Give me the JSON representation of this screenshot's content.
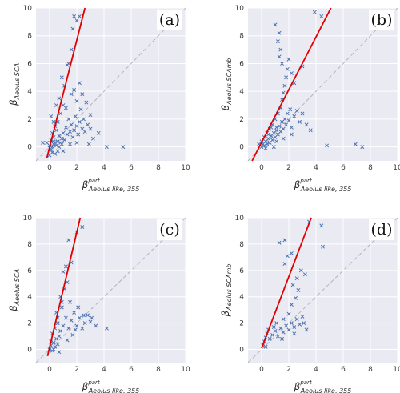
{
  "chart_data": [
    {
      "type": "scatter",
      "panel_label": "(a)",
      "ylabel": "β",
      "ylabel_sub": "Aeolus SCA",
      "xlabel": "β",
      "xlabel_sup": "part",
      "xlabel_sub": "Aeolus like, 355",
      "xlim": [
        -1,
        10
      ],
      "ylim": [
        -1,
        10
      ],
      "xticks": [
        0,
        2,
        4,
        6,
        8,
        10
      ],
      "yticks": [
        0,
        2,
        4,
        6,
        8,
        10
      ],
      "grid": true,
      "marker_color": "#4c72b0",
      "one_to_one_line": true,
      "fit_line": {
        "color": "#e00000",
        "x": [
          -0.2,
          2.6
        ],
        "y": [
          -0.8,
          10
        ]
      },
      "points": [
        [
          0.1,
          -0.2
        ],
        [
          0.2,
          0.0
        ],
        [
          0.3,
          0.2
        ],
        [
          0.1,
          0.5
        ],
        [
          0.4,
          0.3
        ],
        [
          0.5,
          0.1
        ],
        [
          0.6,
          0.4
        ],
        [
          0.2,
          -0.4
        ],
        [
          0.0,
          0.1
        ],
        [
          -0.2,
          0.3
        ],
        [
          0.3,
          0.7
        ],
        [
          0.7,
          0.8
        ],
        [
          0.8,
          0.3
        ],
        [
          0.9,
          0.6
        ],
        [
          1.0,
          1.0
        ],
        [
          1.1,
          0.5
        ],
        [
          0.5,
          1.2
        ],
        [
          0.4,
          1.5
        ],
        [
          0.6,
          1.8
        ],
        [
          0.2,
          1.0
        ],
        [
          1.2,
          1.4
        ],
        [
          1.3,
          0.9
        ],
        [
          1.4,
          2.0
        ],
        [
          1.5,
          1.1
        ],
        [
          1.6,
          1.6
        ],
        [
          1.7,
          0.7
        ],
        [
          1.8,
          1.2
        ],
        [
          1.9,
          2.2
        ],
        [
          2.0,
          1.5
        ],
        [
          2.1,
          0.9
        ],
        [
          2.2,
          1.8
        ],
        [
          2.3,
          2.7
        ],
        [
          2.4,
          1.3
        ],
        [
          2.5,
          2.0
        ],
        [
          2.6,
          1.1
        ],
        [
          2.8,
          1.6
        ],
        [
          3.0,
          1.3
        ],
        [
          0.8,
          2.4
        ],
        [
          1.0,
          3.0
        ],
        [
          1.2,
          2.8
        ],
        [
          0.7,
          3.5
        ],
        [
          1.6,
          3.8
        ],
        [
          1.8,
          4.1
        ],
        [
          2.0,
          3.3
        ],
        [
          2.2,
          4.6
        ],
        [
          1.1,
          4.4
        ],
        [
          0.9,
          5.0
        ],
        [
          1.3,
          5.9
        ],
        [
          1.4,
          6.0
        ],
        [
          1.6,
          7.0
        ],
        [
          1.8,
          9.4
        ],
        [
          2.0,
          9.1
        ],
        [
          2.2,
          9.4
        ],
        [
          1.7,
          8.5
        ],
        [
          0.3,
          1.8
        ],
        [
          0.1,
          2.2
        ],
        [
          0.0,
          -0.6
        ],
        [
          0.4,
          -0.5
        ],
        [
          -0.5,
          0.3
        ],
        [
          3.2,
          0.6
        ],
        [
          3.6,
          1.0
        ],
        [
          4.2,
          0.0
        ],
        [
          5.4,
          0.0
        ],
        [
          2.9,
          0.2
        ],
        [
          1.0,
          -0.3
        ],
        [
          0.6,
          -0.3
        ],
        [
          1.5,
          0.2
        ],
        [
          2.0,
          0.3
        ],
        [
          2.7,
          3.2
        ],
        [
          3.0,
          2.3
        ],
        [
          2.4,
          3.8
        ],
        [
          0.5,
          3.0
        ],
        [
          0.7,
          0.0
        ],
        [
          0.3,
          0.4
        ],
        [
          0.9,
          0.2
        ]
      ]
    },
    {
      "type": "scatter",
      "panel_label": "(b)",
      "ylabel": "β",
      "ylabel_sub": "Aeolus SCAmb",
      "xlabel": "β",
      "xlabel_sup": "part",
      "xlabel_sub": "Aeolus like, 355",
      "xlim": [
        -1,
        10
      ],
      "ylim": [
        -1,
        10
      ],
      "xticks": [
        0,
        2,
        4,
        6,
        8,
        10
      ],
      "yticks": [
        0,
        2,
        4,
        6,
        8,
        10
      ],
      "grid": true,
      "marker_color": "#4c72b0",
      "one_to_one_line": true,
      "fit_line": {
        "color": "#e00000",
        "x": [
          -0.7,
          5.1
        ],
        "y": [
          -1,
          10
        ]
      },
      "points": [
        [
          0.0,
          0.0
        ],
        [
          0.1,
          0.2
        ],
        [
          0.2,
          0.1
        ],
        [
          0.3,
          0.4
        ],
        [
          0.4,
          0.2
        ],
        [
          0.5,
          0.6
        ],
        [
          0.6,
          0.3
        ],
        [
          0.7,
          0.8
        ],
        [
          0.8,
          0.5
        ],
        [
          0.9,
          1.0
        ],
        [
          1.0,
          0.7
        ],
        [
          1.1,
          1.2
        ],
        [
          1.2,
          0.9
        ],
        [
          1.3,
          1.5
        ],
        [
          1.4,
          1.1
        ],
        [
          1.5,
          1.8
        ],
        [
          1.6,
          1.3
        ],
        [
          1.7,
          2.0
        ],
        [
          1.8,
          1.6
        ],
        [
          1.9,
          2.4
        ],
        [
          2.0,
          1.9
        ],
        [
          2.1,
          2.7
        ],
        [
          2.2,
          1.4
        ],
        [
          2.4,
          2.2
        ],
        [
          2.6,
          2.6
        ],
        [
          2.8,
          1.8
        ],
        [
          3.0,
          2.4
        ],
        [
          0.2,
          0.7
        ],
        [
          0.4,
          1.0
        ],
        [
          0.6,
          1.3
        ],
        [
          0.8,
          1.6
        ],
        [
          1.0,
          2.0
        ],
        [
          1.2,
          2.4
        ],
        [
          1.4,
          2.8
        ],
        [
          1.5,
          3.4
        ],
        [
          1.6,
          3.9
        ],
        [
          1.7,
          4.4
        ],
        [
          1.8,
          5.0
        ],
        [
          1.9,
          5.6
        ],
        [
          1.5,
          6.0
        ],
        [
          1.3,
          6.5
        ],
        [
          1.4,
          7.0
        ],
        [
          1.2,
          7.6
        ],
        [
          1.3,
          8.2
        ],
        [
          1.0,
          8.8
        ],
        [
          2.0,
          6.3
        ],
        [
          2.2,
          5.3
        ],
        [
          2.4,
          4.6
        ],
        [
          3.0,
          5.8
        ],
        [
          1.1,
          1.4
        ],
        [
          0.0,
          0.4
        ],
        [
          -0.2,
          0.2
        ],
        [
          0.3,
          -0.1
        ],
        [
          0.9,
          0.0
        ],
        [
          1.6,
          0.6
        ],
        [
          2.2,
          0.9
        ],
        [
          3.3,
          1.6
        ],
        [
          3.6,
          1.2
        ],
        [
          4.8,
          0.1
        ],
        [
          6.9,
          0.2
        ],
        [
          7.4,
          0.0
        ],
        [
          4.4,
          9.4
        ],
        [
          3.9,
          9.7
        ],
        [
          0.5,
          0.9
        ],
        [
          0.7,
          1.4
        ],
        [
          1.1,
          0.4
        ]
      ]
    },
    {
      "type": "scatter",
      "panel_label": "(c)",
      "ylabel": "β",
      "ylabel_sub": "Aeolus SCA",
      "xlabel": "β",
      "xlabel_sup": "part",
      "xlabel_sub": "Aeolus like, 355",
      "xlim": [
        -1,
        10
      ],
      "ylim": [
        -1,
        10
      ],
      "xticks": [
        0,
        2,
        4,
        6,
        8,
        10
      ],
      "yticks": [
        0,
        2,
        4,
        6,
        8,
        10
      ],
      "grid": true,
      "marker_color": "#4c72b0",
      "one_to_one_line": true,
      "fit_line": {
        "color": "#e00000",
        "x": [
          -0.15,
          2.25
        ],
        "y": [
          -0.5,
          10
        ]
      },
      "points": [
        [
          0.0,
          0.0
        ],
        [
          0.1,
          0.3
        ],
        [
          0.2,
          -0.1
        ],
        [
          0.3,
          0.5
        ],
        [
          0.4,
          0.2
        ],
        [
          0.5,
          0.8
        ],
        [
          0.6,
          0.4
        ],
        [
          0.7,
          1.0
        ],
        [
          0.2,
          1.2
        ],
        [
          0.4,
          1.6
        ],
        [
          0.6,
          2.0
        ],
        [
          0.8,
          1.4
        ],
        [
          1.0,
          1.8
        ],
        [
          1.2,
          2.4
        ],
        [
          1.4,
          1.6
        ],
        [
          1.6,
          2.2
        ],
        [
          1.8,
          2.8
        ],
        [
          2.0,
          1.8
        ],
        [
          2.2,
          2.4
        ],
        [
          2.4,
          1.6
        ],
        [
          2.6,
          2.0
        ],
        [
          3.0,
          2.1
        ],
        [
          3.4,
          1.8
        ],
        [
          4.2,
          1.6
        ],
        [
          0.5,
          2.8
        ],
        [
          0.9,
          3.2
        ],
        [
          0.8,
          4.0
        ],
        [
          1.1,
          4.6
        ],
        [
          1.3,
          5.1
        ],
        [
          1.0,
          5.9
        ],
        [
          1.2,
          6.3
        ],
        [
          1.6,
          6.6
        ],
        [
          1.4,
          8.3
        ],
        [
          2.0,
          8.9
        ],
        [
          2.4,
          9.3
        ],
        [
          0.9,
          3.6
        ],
        [
          1.5,
          3.6
        ],
        [
          2.1,
          3.2
        ],
        [
          2.8,
          2.6
        ],
        [
          0.3,
          0.0
        ],
        [
          0.1,
          0.6
        ],
        [
          0.7,
          -0.2
        ],
        [
          1.3,
          0.7
        ],
        [
          1.7,
          1.1
        ],
        [
          2.5,
          2.6
        ],
        [
          3.1,
          2.4
        ],
        [
          0.6,
          2.4
        ],
        [
          1.9,
          1.5
        ]
      ]
    },
    {
      "type": "scatter",
      "panel_label": "(d)",
      "ylabel": "β",
      "ylabel_sub": "Aeolus SCAmb",
      "xlabel": "β",
      "xlabel_sup": "part",
      "xlabel_sub": "Aeolus like, 355",
      "xlim": [
        -1,
        10
      ],
      "ylim": [
        -1,
        10
      ],
      "xticks": [
        0,
        2,
        4,
        6,
        8,
        10
      ],
      "yticks": [
        0,
        2,
        4,
        6,
        8,
        10
      ],
      "grid": true,
      "marker_color": "#4c72b0",
      "one_to_one_line": true,
      "fit_line": {
        "color": "#e00000",
        "x": [
          0,
          3.65
        ],
        "y": [
          0.1,
          10
        ]
      },
      "points": [
        [
          0.1,
          0.3
        ],
        [
          0.2,
          0.6
        ],
        [
          0.3,
          0.9
        ],
        [
          0.4,
          1.2
        ],
        [
          0.6,
          0.8
        ],
        [
          0.8,
          1.1
        ],
        [
          1.0,
          1.4
        ],
        [
          1.2,
          1.0
        ],
        [
          1.4,
          1.6
        ],
        [
          1.6,
          1.3
        ],
        [
          1.8,
          1.8
        ],
        [
          2.0,
          1.5
        ],
        [
          2.2,
          2.0
        ],
        [
          2.4,
          1.7
        ],
        [
          2.6,
          2.3
        ],
        [
          2.8,
          1.9
        ],
        [
          3.0,
          2.5
        ],
        [
          3.1,
          2.0
        ],
        [
          0.5,
          1.5
        ],
        [
          1.1,
          2.0
        ],
        [
          1.6,
          2.3
        ],
        [
          2.0,
          2.7
        ],
        [
          2.2,
          3.4
        ],
        [
          2.5,
          3.9
        ],
        [
          2.7,
          4.5
        ],
        [
          2.3,
          4.9
        ],
        [
          2.6,
          5.4
        ],
        [
          2.9,
          6.0
        ],
        [
          3.2,
          5.7
        ],
        [
          1.7,
          6.5
        ],
        [
          1.9,
          7.1
        ],
        [
          1.3,
          8.1
        ],
        [
          1.7,
          8.3
        ],
        [
          2.2,
          7.3
        ],
        [
          3.5,
          9.7
        ],
        [
          4.4,
          9.4
        ],
        [
          4.5,
          7.8
        ],
        [
          0.9,
          1.7
        ],
        [
          1.5,
          0.8
        ],
        [
          2.4,
          1.2
        ],
        [
          0.3,
          0.2
        ],
        [
          3.3,
          1.5
        ]
      ]
    }
  ]
}
